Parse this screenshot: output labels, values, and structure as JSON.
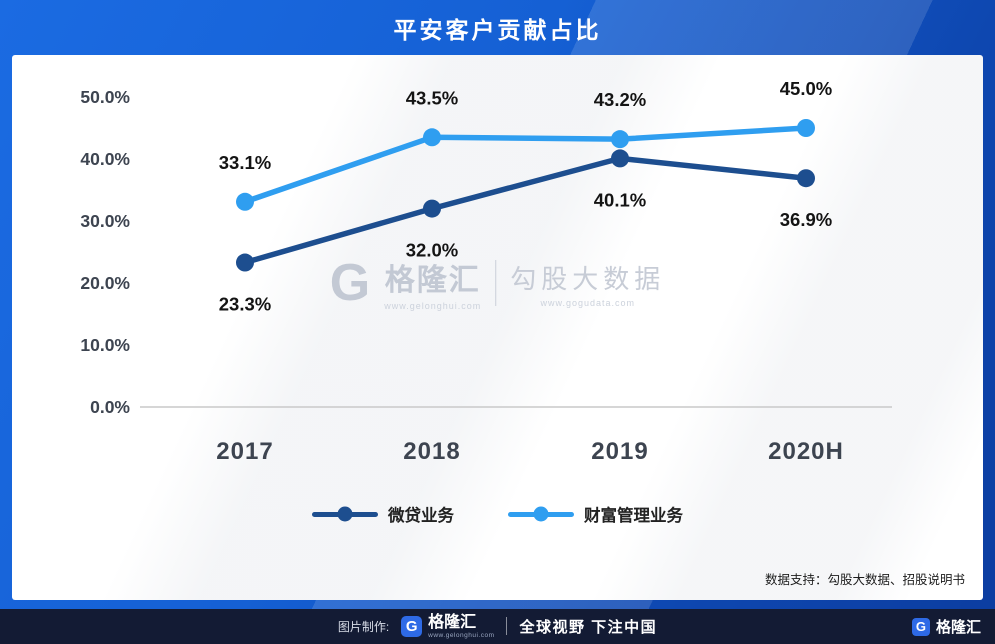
{
  "chart_data": {
    "type": "line",
    "title": "平安客户贡献占比",
    "categories": [
      "2017",
      "2018",
      "2019",
      "2020H"
    ],
    "series": [
      {
        "name": "微贷业务",
        "values": [
          23.3,
          32.0,
          40.1,
          36.9
        ],
        "color": "#1d4e8f",
        "label_position": "below"
      },
      {
        "name": "财富管理业务",
        "values": [
          33.1,
          43.5,
          43.2,
          45.0
        ],
        "color": "#2f9ef0",
        "label_position": "above"
      }
    ],
    "ylim": [
      0,
      50
    ],
    "ytick_values": [
      0,
      10,
      20,
      30,
      40,
      50
    ],
    "ytick_labels": [
      "0.0%",
      "10.0%",
      "20.0%",
      "30.0%",
      "40.0%",
      "50.0%"
    ],
    "grid": false,
    "legend_position": "bottom",
    "value_label_format": "percent_one_decimal"
  },
  "watermark": {
    "logo_letter": "G",
    "brand": "格隆汇",
    "brand_url": "www.gelonghui.com",
    "product": "勾股大数据",
    "product_url": "www.gogudata.com"
  },
  "source_note": "数据支持：勾股大数据、招股说明书",
  "footer": {
    "made_by_label": "图片制作:",
    "logo_letter": "G",
    "brand": "格隆汇",
    "brand_url": "www.gelonghui.com",
    "slogan": "全球视野 下注中国"
  }
}
